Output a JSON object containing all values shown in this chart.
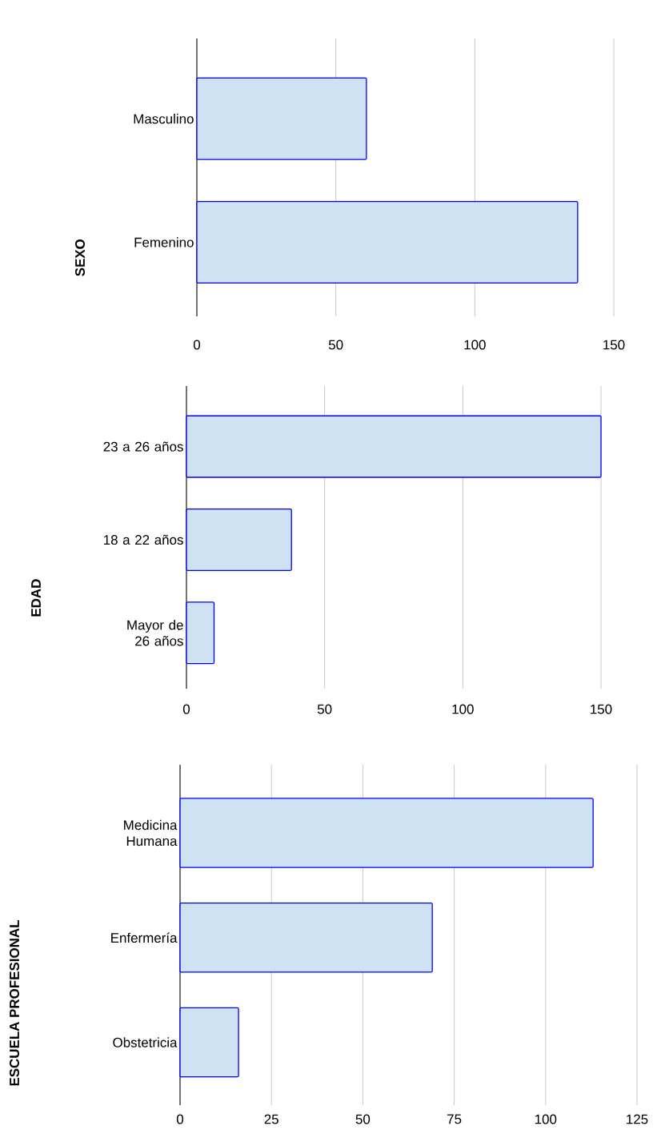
{
  "chart_data": [
    {
      "type": "bar",
      "orientation": "horizontal",
      "ylabel": "SEXO",
      "categories": [
        "Masculino",
        "Femenino"
      ],
      "values": [
        61,
        137
      ],
      "color": "#cfe2f3",
      "xlim": [
        0,
        150
      ],
      "xticks": [
        0,
        50,
        100,
        150
      ],
      "grid": "x"
    },
    {
      "type": "bar",
      "orientation": "horizontal",
      "ylabel": "EDAD",
      "categories": [
        "23 a 26 años",
        "18 a 22 años",
        "Mayor de 26 años"
      ],
      "values": [
        150,
        38,
        10
      ],
      "color": "#cfe2f3",
      "xlim": [
        0,
        150
      ],
      "xticks": [
        0,
        50,
        100,
        150
      ],
      "grid": "x"
    },
    {
      "type": "bar",
      "orientation": "horizontal",
      "ylabel": "ESCUELA PROFESIONAL",
      "categories": [
        "Medicina Humana",
        "Enfermería",
        "Obstetricia"
      ],
      "values": [
        113,
        69,
        16
      ],
      "color": "#cfe2f3",
      "xlim": [
        0,
        125
      ],
      "xticks": [
        0,
        25,
        50,
        75,
        100,
        125
      ],
      "grid": "x"
    }
  ]
}
